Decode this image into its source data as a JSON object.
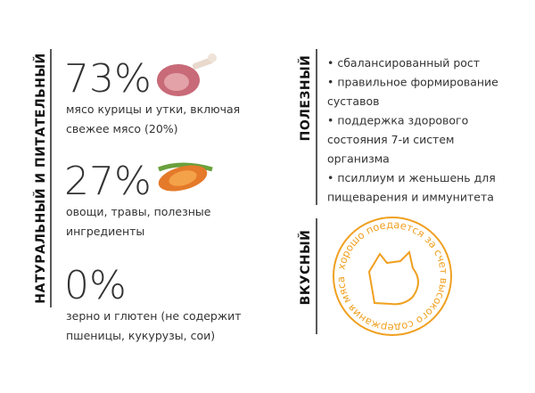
{
  "left": {
    "label": "НАТУРАЛЬНЫЙ И ПИТАТЕЛЬНЫЙ",
    "stats": [
      {
        "value": "73%",
        "lines": [
          "мясо курицы и утки, включая",
          "свежее мясо (20%)"
        ]
      },
      {
        "value": "27%",
        "lines": [
          "овощи, травы, полезные",
          "ингредиенты"
        ]
      },
      {
        "value": "0%",
        "lines": [
          "зерно и глютен (не содержит",
          "пшеницы, кукурузы, сои)"
        ]
      }
    ]
  },
  "useful": {
    "label": "ПОЛЕЗНЫЙ",
    "items": [
      [
        "• сбалансированный рост"
      ],
      [
        "• правильное формирование",
        "суставов"
      ],
      [
        "• поддержка здорового",
        "состояния 7-и систем",
        "организма"
      ],
      [
        "• псиллиум и женьшень для",
        "пищеварения и иммунитета"
      ]
    ]
  },
  "tasty": {
    "label": "ВКУСНЫЙ",
    "badge": "хорошо поедается за счет высокого содержания мяса"
  }
}
